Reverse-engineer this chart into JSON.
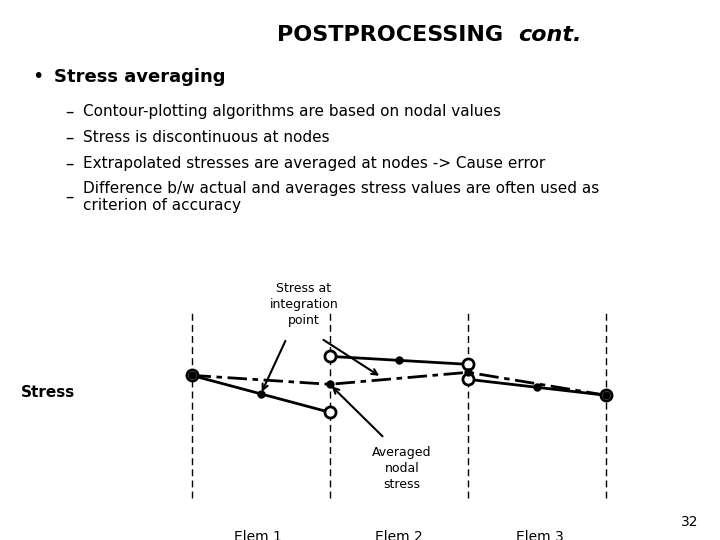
{
  "title_normal": "POSTPROCESSING ",
  "title_italic": "cont.",
  "bullet_main": "Stress averaging",
  "bullet_items": [
    "Contour-plotting algorithms are based on nodal values",
    "Stress is discontinuous at nodes",
    "Extrapolated stresses are averaged at nodes -> Cause error",
    "Difference b/w actual and averages stress values are often used as\ncriterion of accuracy"
  ],
  "border_color": "#3333aa",
  "background_color": "#ffffff",
  "text_color": "#000000",
  "page_number": "32",
  "graph": {
    "stress_label": "Stress",
    "elem_labels": [
      "Elem 1",
      "Elem 2",
      "Elem 3"
    ],
    "annotation_integration": "Stress at\nintegration\npoint",
    "annotation_nodal": "Averaged\nnodal\nstress"
  }
}
